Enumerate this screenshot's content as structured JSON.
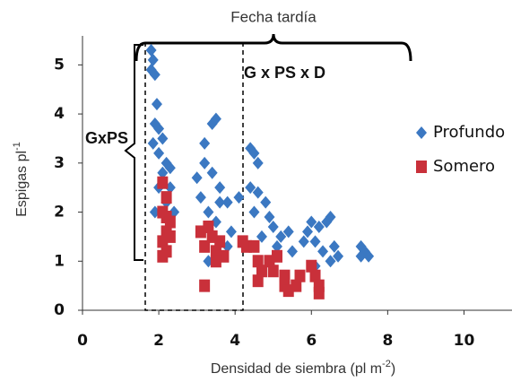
{
  "chart_data": {
    "type": "scatter",
    "annotations": [
      "Fecha tardía",
      "G x PS x D",
      "GxPS"
    ],
    "x_label": "Densidad de siembra (pl m",
    "x_label_sup": "-2",
    "x_label_end": ")",
    "y_label": "Espigas pl",
    "y_label_sup": "-1",
    "xlim": [
      0,
      11
    ],
    "ylim": [
      0,
      5.5
    ],
    "xticks": [
      0,
      2,
      4,
      6,
      8,
      10
    ],
    "yticks": [
      0,
      1,
      2,
      3,
      4,
      5
    ],
    "legend": "right",
    "series": [
      {
        "name": "Profundo",
        "color": "#3b78c2",
        "marker": "diamond",
        "x": [
          1.8,
          1.85,
          1.8,
          1.9,
          1.95,
          1.9,
          2.0,
          1.85,
          2.1,
          2.0,
          2.2,
          2.1,
          2.3,
          2.0,
          2.3,
          2.2,
          1.9,
          2.4,
          3.2,
          3.4,
          3.5,
          3.0,
          3.2,
          3.4,
          3.6,
          3.1,
          3.3,
          3.6,
          3.8,
          3.5,
          3.9,
          3.3,
          3.8,
          4.1,
          4.4,
          4.5,
          4.6,
          4.4,
          4.6,
          4.8,
          4.5,
          4.9,
          5.0,
          4.7,
          5.2,
          5.1,
          5.4,
          5.5,
          5.8,
          5.9,
          6.0,
          6.2,
          6.4,
          6.5,
          6.1,
          6.3,
          6.6,
          6.7,
          6.1,
          6.5,
          7.3,
          7.4,
          7.3,
          7.5
        ],
        "y": [
          5.3,
          5.1,
          4.9,
          4.8,
          4.2,
          3.8,
          3.7,
          3.4,
          3.5,
          3.2,
          3.0,
          2.8,
          2.9,
          2.5,
          2.5,
          2.2,
          2.0,
          2.0,
          3.4,
          3.8,
          3.9,
          2.7,
          3.0,
          2.8,
          2.5,
          2.3,
          2.0,
          2.2,
          2.2,
          1.8,
          1.6,
          1.0,
          1.3,
          2.3,
          3.3,
          3.2,
          3.0,
          2.5,
          2.4,
          2.2,
          2.0,
          1.9,
          1.7,
          1.5,
          1.5,
          1.3,
          1.6,
          1.2,
          1.4,
          1.6,
          1.8,
          1.7,
          1.8,
          1.9,
          1.4,
          1.2,
          1.3,
          1.1,
          0.9,
          1.0,
          1.3,
          1.2,
          1.1,
          1.1
        ]
      },
      {
        "name": "Somero",
        "color": "#c9303a",
        "marker": "square",
        "x": [
          2.1,
          2.2,
          2.1,
          2.2,
          2.3,
          2.2,
          2.3,
          2.1,
          2.2,
          2.1,
          3.1,
          3.3,
          3.4,
          3.2,
          3.5,
          3.6,
          3.7,
          3.5,
          3.2,
          4.2,
          4.3,
          4.5,
          4.6,
          4.7,
          4.6,
          4.9,
          5.0,
          5.1,
          5.3,
          5.4,
          5.6,
          5.7,
          6.0,
          6.1,
          6.2,
          6.2,
          5.3
        ],
        "y": [
          2.6,
          2.3,
          2.0,
          1.9,
          1.8,
          1.6,
          1.5,
          1.4,
          1.2,
          1.1,
          1.6,
          1.7,
          1.5,
          1.3,
          1.2,
          1.4,
          1.1,
          1.0,
          0.5,
          1.4,
          1.3,
          1.3,
          1.0,
          0.8,
          0.6,
          1.0,
          0.8,
          1.1,
          0.5,
          0.4,
          0.5,
          0.7,
          0.9,
          0.7,
          0.5,
          0.35,
          0.7
        ]
      }
    ]
  }
}
